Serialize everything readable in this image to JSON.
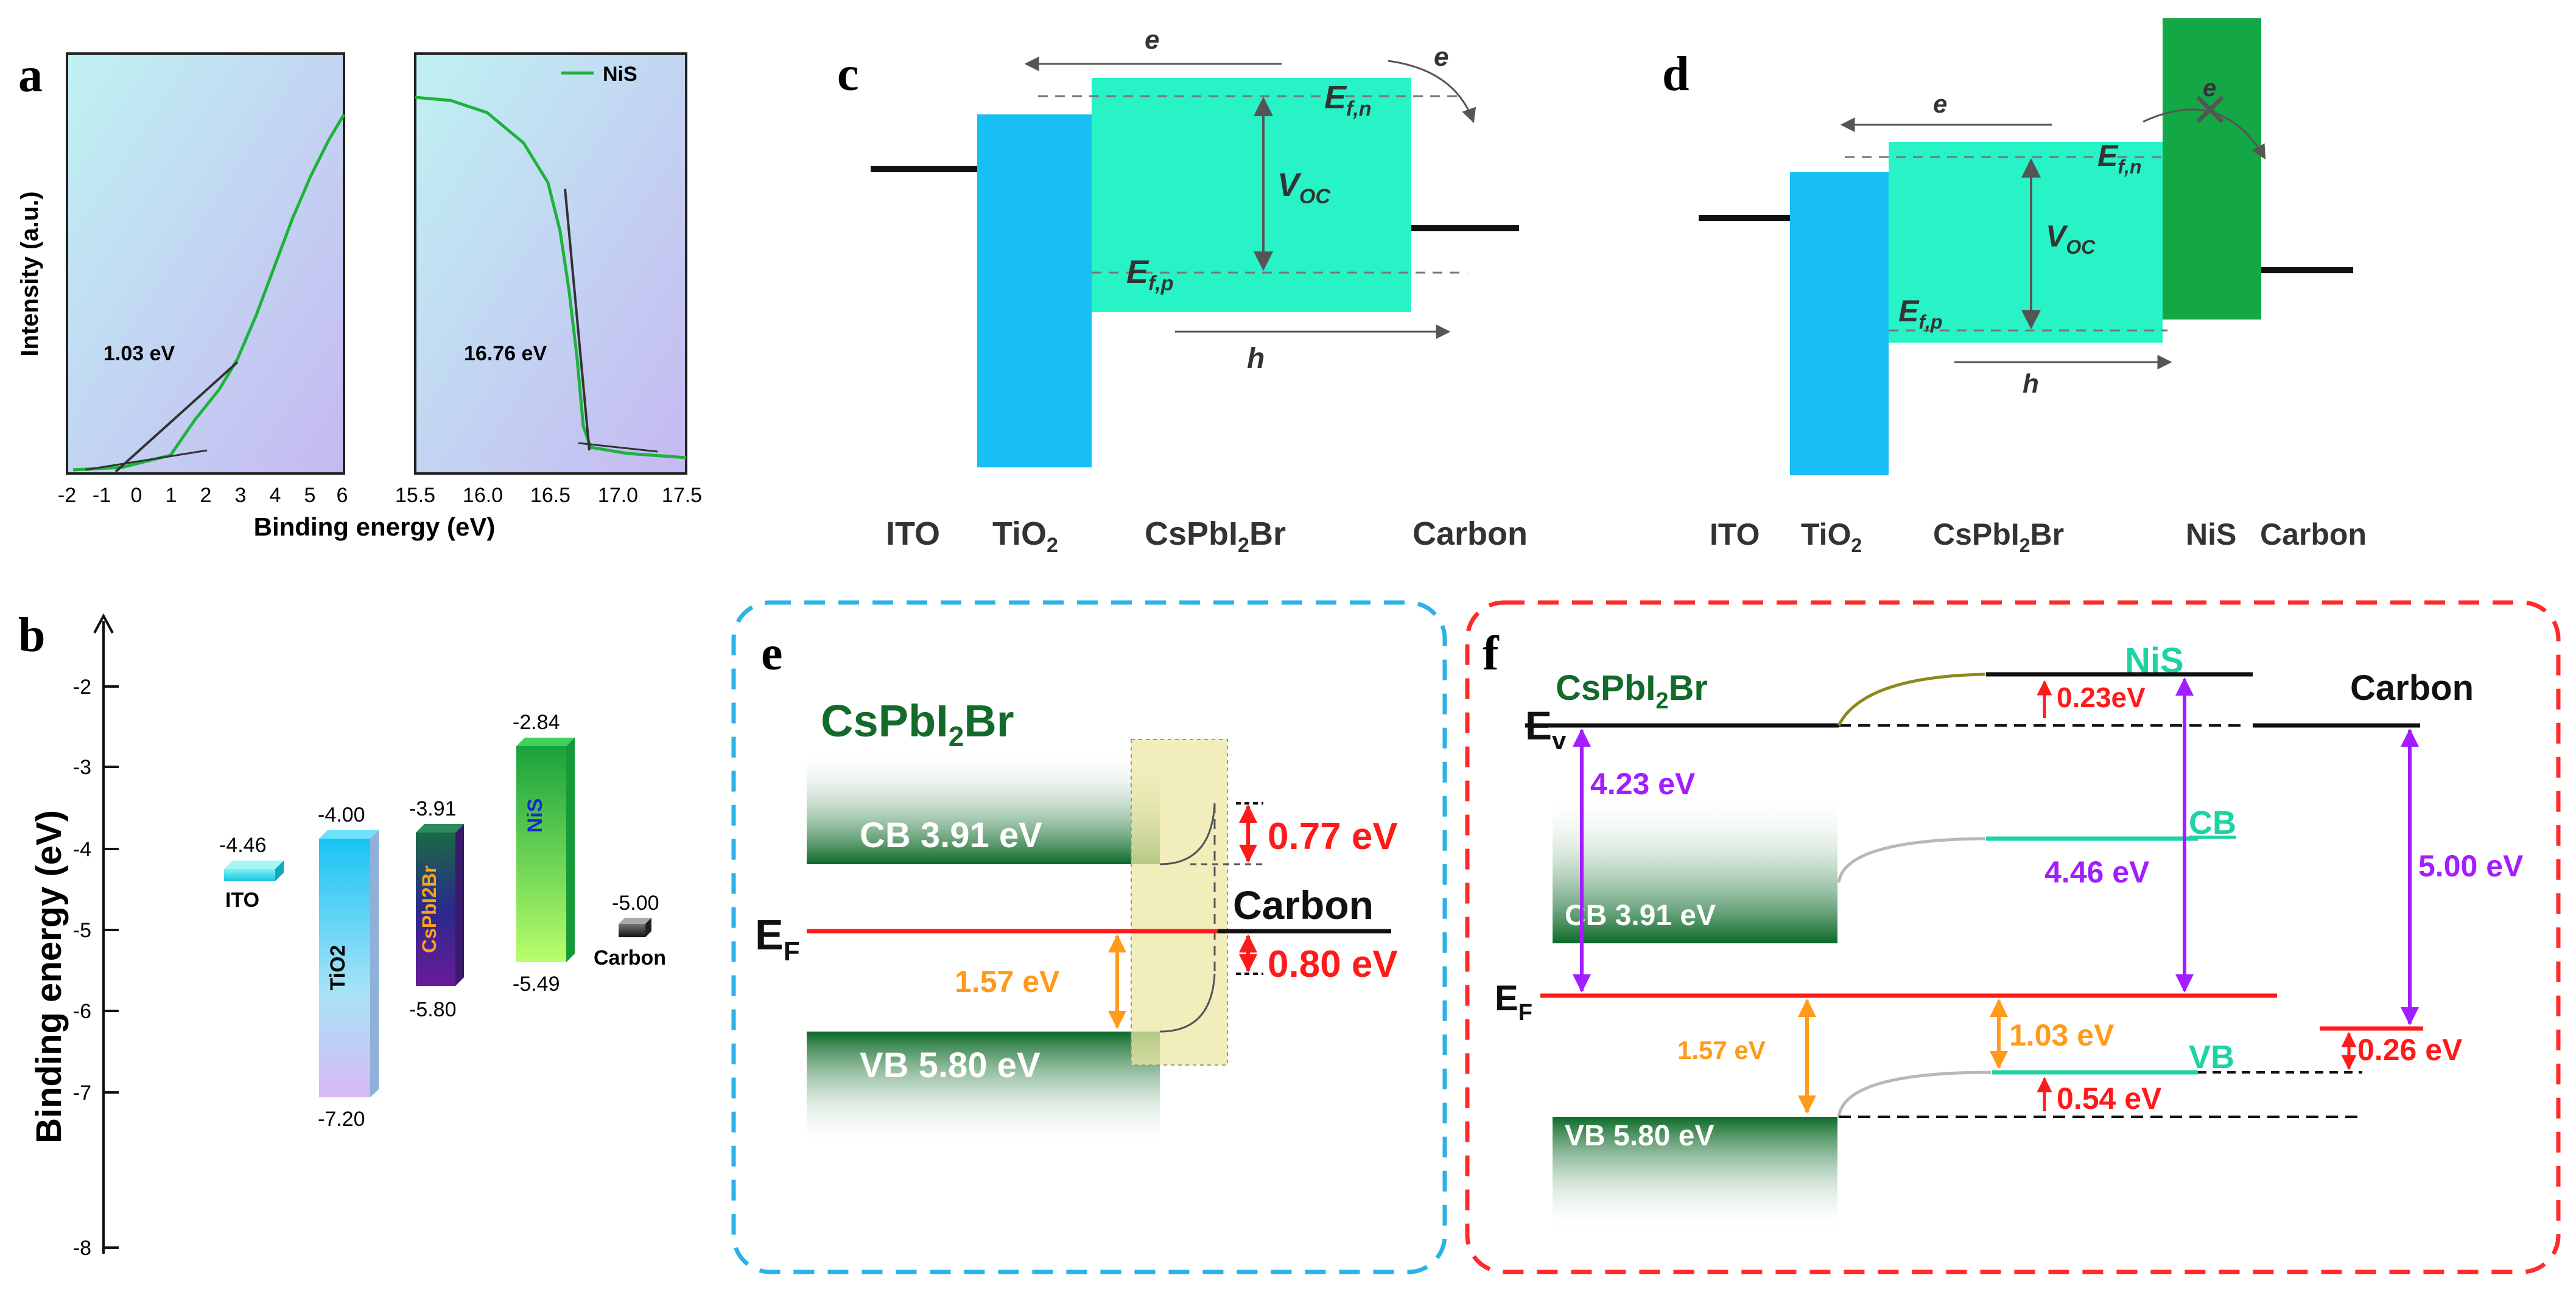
{
  "panels": {
    "a": "a",
    "b": "b",
    "c": "c",
    "d": "d",
    "e": "e",
    "f": "f"
  },
  "colors": {
    "nis_curve": "#1db33a",
    "tio2_blue": "#17bff5",
    "perovskite_green": "#27f3c6",
    "nis_green": "#14a745",
    "red": "#ff1a1a",
    "orange": "#ff9a1a",
    "purple": "#a21dff",
    "cyan_box": "#2bb2e6",
    "red_box": "#ff2a2a",
    "dark_green": "#126b2a",
    "teal": "#1dd3a3"
  },
  "panel_a": {
    "ylabel": "Intensity (a.u.)",
    "xlabel": "Binding energy (eV)",
    "legend": "NiS",
    "left_annotation": "1.03 eV",
    "right_annotation": "16.76 eV",
    "left_ticks": [
      "-2",
      "-1",
      "0",
      "1",
      "2",
      "3",
      "4",
      "5",
      "6"
    ],
    "right_ticks": [
      "15.5",
      "16.0",
      "16.5",
      "17.0",
      "17.5"
    ]
  },
  "panel_b": {
    "ylabel": "Binding energy (eV)",
    "yticks": [
      "-2",
      "-3",
      "-4",
      "-5",
      "-6",
      "-7",
      "-8"
    ],
    "bars": [
      {
        "name": "ITO",
        "top": "-4.46"
      },
      {
        "name": "TiO2",
        "top": "-4.00",
        "bottom": "-7.20"
      },
      {
        "name": "CsPbI2Br",
        "top": "-3.91",
        "bottom": "-5.80"
      },
      {
        "name": "NiS",
        "top": "-2.84",
        "bottom": "-5.49"
      },
      {
        "name": "Carbon",
        "top": "-5.00"
      }
    ]
  },
  "panel_c": {
    "e_top": "e",
    "e_right": "e",
    "efn": "E",
    "efn_sub": "f,n",
    "voc": "V",
    "voc_sub": "OC",
    "efp": "E",
    "efp_sub": "f,p",
    "h": "h",
    "labels": {
      "ito": "ITO",
      "tio2": "TiO",
      "cspbi2br": "CsPbI",
      "carbon": "Carbon"
    }
  },
  "panel_d": {
    "e_top": "e",
    "e_cross": "e",
    "efn": "E",
    "efn_sub": "f,n",
    "voc": "V",
    "voc_sub": "OC",
    "efp": "E",
    "efp_sub": "f,p",
    "h": "h",
    "labels": {
      "ito": "ITO",
      "tio2": "TiO",
      "cspbi2br": "CsPbI",
      "nis": "NiS",
      "carbon": "Carbon"
    }
  },
  "panel_e": {
    "title": "CsPbI",
    "cb": "CB 3.91 eV",
    "vb": "VB 5.80 eV",
    "ef": "E",
    "ef_sub": "F",
    "gap_top": "0.77 eV",
    "gap_bottom": "0.80 eV",
    "orange_gap": "1.57 eV",
    "carbon": "Carbon"
  },
  "panel_f": {
    "cspbi2br": "CsPbI",
    "nis": "NiS",
    "carbon": "Carbon",
    "ev": "E",
    "ev_sub": "v",
    "ef": "E",
    "ef_sub": "F",
    "d_0_23": "0.23eV",
    "wf_4_23": "4.23 eV",
    "wf_4_46": "4.46 eV",
    "wf_5_00": "5.00 eV",
    "cb_left": "CB 3.91 eV",
    "vb_left": "VB 5.80 eV",
    "cb": "CB",
    "vb": "VB",
    "orange_1_57": "1.57 eV",
    "orange_1_03": "1.03 eV",
    "d_0_54": "0.54 eV",
    "d_0_26": "0.26 eV"
  }
}
